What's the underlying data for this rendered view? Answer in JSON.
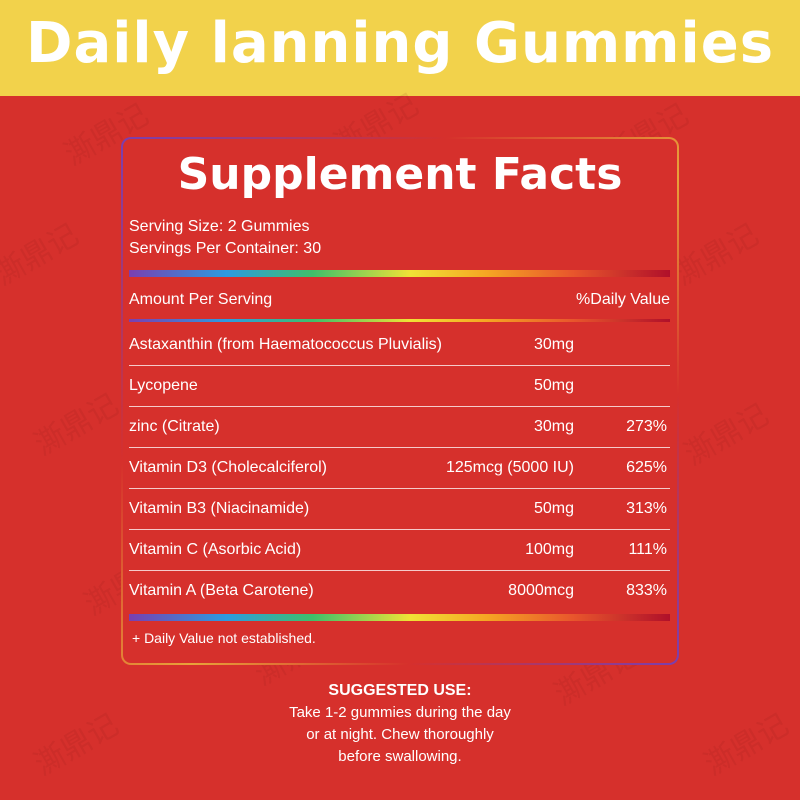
{
  "banner": {
    "title": "Daily lanning Gummies",
    "bg_color": "#f2d24b"
  },
  "page": {
    "bg_color": "#d6302c"
  },
  "watermark": {
    "text": "澌鼎记"
  },
  "facts": {
    "title": "Supplement Facts",
    "serving_size": "Serving Size: 2 Gummies",
    "servings_per_container": "Servings Per Container: 30",
    "amount_header": "Amount Per Serving",
    "dv_header": "%Daily Value",
    "rows": [
      {
        "name": "Astaxanthin (from Haematococcus Pluvialis)",
        "amount": "30mg",
        "dv": ""
      },
      {
        "name": "Lycopene",
        "amount": "50mg",
        "dv": ""
      },
      {
        "name": "zinc (Citrate)",
        "amount": "30mg",
        "dv": "273%"
      },
      {
        "name": "Vitamin D3 (Cholecalciferol)",
        "amount": "125mcg (5000 IU)",
        "dv": "625%"
      },
      {
        "name": "Vitamin B3 (Niacinamide)",
        "amount": "50mg",
        "dv": "313%"
      },
      {
        "name": "Vitamin C (Asorbic Acid)",
        "amount": "100mg",
        "dv": "111%"
      },
      {
        "name": "Vitamin A (Beta Carotene)",
        "amount": "8000mcg",
        "dv": "833%"
      }
    ],
    "footnote": "+ Daily Value not established."
  },
  "suggested_use": {
    "heading": "SUGGESTED USE:",
    "lines": [
      "Take 1-2 gummies during the day",
      "or at night. Chew thoroughly",
      "before swallowing."
    ]
  }
}
